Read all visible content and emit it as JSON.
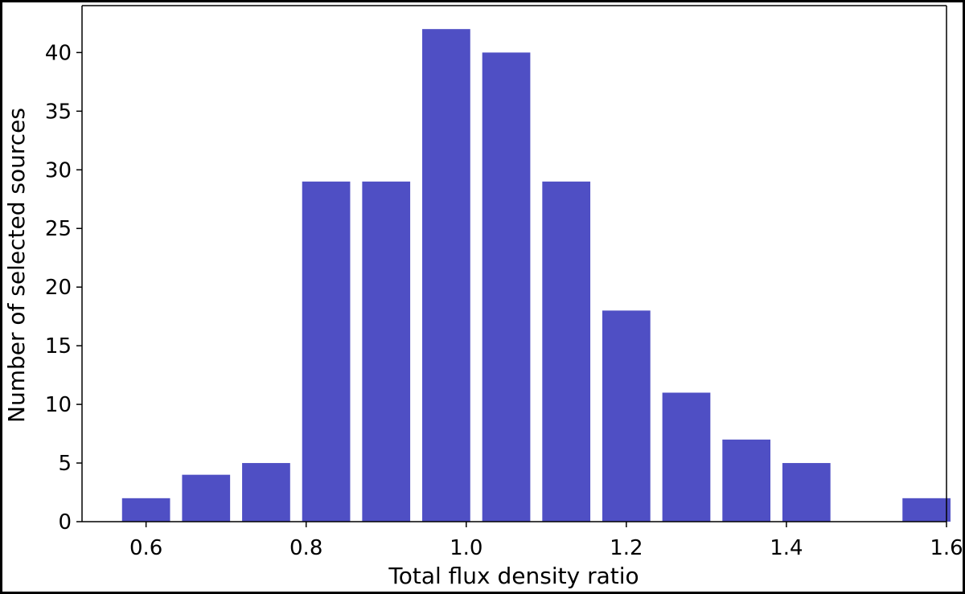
{
  "chart_data": {
    "type": "bar",
    "title": "",
    "xlabel": "Total flux density ratio",
    "ylabel": "Number of selected sources",
    "x": [
      0.6,
      0.675,
      0.75,
      0.825,
      0.9,
      0.975,
      1.05,
      1.125,
      1.2,
      1.275,
      1.35,
      1.425,
      1.5,
      1.575
    ],
    "values": [
      2,
      4,
      5,
      29,
      29,
      42,
      40,
      29,
      18,
      11,
      7,
      5,
      0,
      2
    ],
    "xlim": [
      0.52,
      1.6
    ],
    "ylim": [
      0,
      44
    ],
    "xticks": [
      "0.6",
      "0.8",
      "1.0",
      "1.2",
      "1.4",
      "1.6"
    ],
    "yticks": [
      "0",
      "5",
      "10",
      "15",
      "20",
      "25",
      "30",
      "35",
      "40"
    ],
    "bar_color": "#4f4fc4",
    "grid": false,
    "legend": "none"
  }
}
